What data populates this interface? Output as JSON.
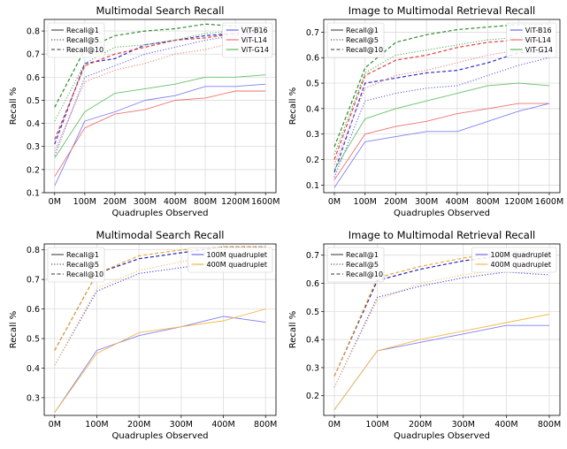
{
  "chart_data": [
    {
      "type": "line",
      "title": "Multimodal Search Recall",
      "xlabel": "Quadruples Observed",
      "ylabel": "Recall %",
      "categories": [
        "0M",
        "100M",
        "200M",
        "300M",
        "400M",
        "800M",
        "1200M",
        "1600M"
      ],
      "ylim": [
        0.1,
        0.85
      ],
      "yticks": [
        "0.1",
        "0.2",
        "0.3",
        "0.4",
        "0.5",
        "0.6",
        "0.7",
        "0.8"
      ],
      "grid": true,
      "legend_style": {
        "position": "top-left",
        "entries": [
          "Recall@1",
          "Recall@5",
          "Recall@10"
        ]
      },
      "legend_color": {
        "position": "top-right",
        "entries": [
          {
            "name": "ViT-B16",
            "color": "#6b6bf0"
          },
          {
            "name": "ViT-L14",
            "color": "#f07070"
          },
          {
            "name": "ViT-G14",
            "color": "#5cb85c"
          }
        ]
      },
      "series": [
        {
          "model": "ViT-B16",
          "metric": "Recall@1",
          "color": "#8080f8",
          "values": [
            0.13,
            0.41,
            0.45,
            0.5,
            0.52,
            0.56,
            0.56,
            0.57
          ]
        },
        {
          "model": "ViT-B16",
          "metric": "Recall@5",
          "color": "#6060e0",
          "values": [
            0.26,
            0.6,
            0.65,
            0.7,
            0.73,
            0.76,
            0.78,
            0.79
          ]
        },
        {
          "model": "ViT-B16",
          "metric": "Recall@10",
          "color": "#3030d0",
          "values": [
            0.31,
            0.66,
            0.68,
            0.74,
            0.76,
            0.78,
            0.79,
            0.79
          ]
        },
        {
          "model": "ViT-L14",
          "metric": "Recall@1",
          "color": "#f07070",
          "values": [
            0.17,
            0.38,
            0.44,
            0.46,
            0.5,
            0.51,
            0.54,
            0.54
          ]
        },
        {
          "model": "ViT-L14",
          "metric": "Recall@5",
          "color": "#f08080",
          "values": [
            0.28,
            0.58,
            0.63,
            0.66,
            0.7,
            0.72,
            0.75,
            0.76
          ]
        },
        {
          "model": "ViT-L14",
          "metric": "Recall@10",
          "color": "#e04040",
          "values": [
            0.33,
            0.65,
            0.7,
            0.73,
            0.76,
            0.77,
            0.79,
            0.79
          ]
        },
        {
          "model": "ViT-G14",
          "metric": "Recall@1",
          "color": "#66c066",
          "values": [
            0.25,
            0.45,
            0.53,
            0.55,
            0.57,
            0.6,
            0.6,
            0.61
          ]
        },
        {
          "model": "ViT-G14",
          "metric": "Recall@5",
          "color": "#55b055",
          "values": [
            0.41,
            0.66,
            0.73,
            0.74,
            0.76,
            0.79,
            0.8,
            0.8
          ]
        },
        {
          "model": "ViT-G14",
          "metric": "Recall@10",
          "color": "#2e8b2e",
          "values": [
            0.47,
            0.72,
            0.78,
            0.8,
            0.81,
            0.83,
            0.82,
            0.82
          ]
        }
      ]
    },
    {
      "type": "line",
      "title": "Image to Multimodal Retrieval Recall",
      "xlabel": "Quadruples Observed",
      "ylabel": "Recall %",
      "categories": [
        "0M",
        "100M",
        "200M",
        "300M",
        "400M",
        "800M",
        "1200M",
        "1600M"
      ],
      "ylim": [
        0.07,
        0.75
      ],
      "yticks": [
        "0.1",
        "0.2",
        "0.3",
        "0.4",
        "0.5",
        "0.6",
        "0.7"
      ],
      "grid": true,
      "legend_style": {
        "position": "top-left",
        "entries": [
          "Recall@1",
          "Recall@5",
          "Recall@10"
        ]
      },
      "legend_color": {
        "position": "top-right",
        "entries": [
          {
            "name": "ViT-B16",
            "color": "#6b6bf0"
          },
          {
            "name": "ViT-L14",
            "color": "#f07070"
          },
          {
            "name": "ViT-G14",
            "color": "#5cb85c"
          }
        ]
      },
      "series": [
        {
          "model": "ViT-B16",
          "metric": "Recall@1",
          "color": "#8080f8",
          "values": [
            0.09,
            0.27,
            0.29,
            0.31,
            0.31,
            0.35,
            0.39,
            0.42
          ]
        },
        {
          "model": "ViT-B16",
          "metric": "Recall@5",
          "color": "#6060e0",
          "values": [
            0.13,
            0.43,
            0.46,
            0.48,
            0.49,
            0.53,
            0.57,
            0.6
          ]
        },
        {
          "model": "ViT-B16",
          "metric": "Recall@10",
          "color": "#3030d0",
          "values": [
            0.15,
            0.5,
            0.52,
            0.54,
            0.55,
            0.58,
            0.62,
            0.62
          ]
        },
        {
          "model": "ViT-L14",
          "metric": "Recall@1",
          "color": "#f07070",
          "values": [
            0.12,
            0.3,
            0.33,
            0.35,
            0.38,
            0.4,
            0.42,
            0.42
          ]
        },
        {
          "model": "ViT-L14",
          "metric": "Recall@5",
          "color": "#f08080",
          "values": [
            0.18,
            0.48,
            0.53,
            0.55,
            0.58,
            0.61,
            0.63,
            0.65
          ]
        },
        {
          "model": "ViT-L14",
          "metric": "Recall@10",
          "color": "#e04040",
          "values": [
            0.2,
            0.53,
            0.59,
            0.61,
            0.64,
            0.66,
            0.67,
            0.67
          ]
        },
        {
          "model": "ViT-G14",
          "metric": "Recall@1",
          "color": "#66c066",
          "values": [
            0.16,
            0.36,
            0.4,
            0.43,
            0.46,
            0.49,
            0.5,
            0.49
          ]
        },
        {
          "model": "ViT-G14",
          "metric": "Recall@5",
          "color": "#55b055",
          "values": [
            0.22,
            0.54,
            0.61,
            0.63,
            0.65,
            0.67,
            0.68,
            0.68
          ]
        },
        {
          "model": "ViT-G14",
          "metric": "Recall@10",
          "color": "#2e8b2e",
          "values": [
            0.25,
            0.56,
            0.66,
            0.69,
            0.71,
            0.72,
            0.73,
            0.73
          ]
        }
      ]
    },
    {
      "type": "line",
      "title": "Multimodal Search Recall",
      "xlabel": "Quadruples Observed",
      "ylabel": "Recall %",
      "categories": [
        "0M",
        "100M",
        "200M",
        "300M",
        "400M",
        "800M"
      ],
      "ylim": [
        0.24,
        0.82
      ],
      "yticks": [
        "0.3",
        "0.4",
        "0.5",
        "0.6",
        "0.7",
        "0.8"
      ],
      "grid": true,
      "legend_style": {
        "position": "top-left",
        "entries": [
          "Recall@1",
          "Recall@5",
          "Recall@10"
        ]
      },
      "legend_color": {
        "position": "top-right",
        "entries": [
          {
            "name": "100M quadruplet",
            "color": "#6b6bf0"
          },
          {
            "name": "400M quadruplet",
            "color": "#f5b84a"
          }
        ]
      },
      "series": [
        {
          "model": "100M quadruplet",
          "metric": "Recall@1",
          "color": "#8080f8",
          "values": [
            0.25,
            0.46,
            0.51,
            0.54,
            0.575,
            0.555
          ]
        },
        {
          "model": "100M quadruplet",
          "metric": "Recall@5",
          "color": "#4040d8",
          "values": [
            0.41,
            0.66,
            0.72,
            0.74,
            0.76,
            0.74
          ]
        },
        {
          "model": "100M quadruplet",
          "metric": "Recall@10",
          "color": "#2020c0",
          "values": [
            0.46,
            0.72,
            0.77,
            0.79,
            0.81,
            0.81
          ]
        },
        {
          "model": "400M quadruplet",
          "metric": "Recall@1",
          "color": "#f5b84a",
          "values": [
            0.25,
            0.45,
            0.52,
            0.54,
            0.56,
            0.6
          ]
        },
        {
          "model": "400M quadruplet",
          "metric": "Recall@5",
          "color": "#f5c060",
          "values": [
            0.41,
            0.67,
            0.73,
            0.76,
            0.78,
            0.78
          ]
        },
        {
          "model": "400M quadruplet",
          "metric": "Recall@10",
          "color": "#f0a830",
          "values": [
            0.46,
            0.72,
            0.78,
            0.8,
            0.81,
            0.81
          ]
        }
      ]
    },
    {
      "type": "line",
      "title": "Image to Multimodal Retrieval Recall",
      "xlabel": "Quadruples Observed",
      "ylabel": "Recall %",
      "categories": [
        "0M",
        "100M",
        "200M",
        "300M",
        "400M",
        "800M"
      ],
      "ylim": [
        0.13,
        0.74
      ],
      "yticks": [
        "0.2",
        "0.3",
        "0.4",
        "0.5",
        "0.6",
        "0.7"
      ],
      "grid": true,
      "legend_style": {
        "position": "top-left",
        "entries": [
          "Recall@1",
          "Recall@5",
          "Recall@10"
        ]
      },
      "legend_color": {
        "position": "top-right",
        "entries": [
          {
            "name": "100M quadruplet",
            "color": "#6b6bf0"
          },
          {
            "name": "400M quadruplet",
            "color": "#f5b84a"
          }
        ]
      },
      "series": [
        {
          "model": "100M quadruplet",
          "metric": "Recall@1",
          "color": "#8080f8",
          "values": [
            0.15,
            0.36,
            0.39,
            0.42,
            0.45,
            0.45
          ]
        },
        {
          "model": "100M quadruplet",
          "metric": "Recall@5",
          "color": "#4040d8",
          "values": [
            0.23,
            0.55,
            0.59,
            0.62,
            0.64,
            0.63
          ]
        },
        {
          "model": "100M quadruplet",
          "metric": "Recall@10",
          "color": "#2020c0",
          "values": [
            0.27,
            0.61,
            0.65,
            0.68,
            0.7,
            0.71
          ]
        },
        {
          "model": "400M quadruplet",
          "metric": "Recall@1",
          "color": "#f5b84a",
          "values": [
            0.15,
            0.36,
            0.4,
            0.43,
            0.46,
            0.49
          ]
        },
        {
          "model": "400M quadruplet",
          "metric": "Recall@5",
          "color": "#f5c060",
          "values": [
            0.23,
            0.54,
            0.6,
            0.63,
            0.65,
            0.66
          ]
        },
        {
          "model": "400M quadruplet",
          "metric": "Recall@10",
          "color": "#f0a830",
          "values": [
            0.27,
            0.62,
            0.66,
            0.69,
            0.71,
            0.72
          ]
        }
      ]
    }
  ]
}
